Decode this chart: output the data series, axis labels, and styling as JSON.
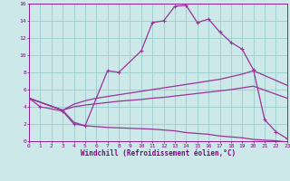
{
  "bg_color": "#cce8e8",
  "grid_color": "#99cccc",
  "line_color": "#993399",
  "xlabel": "Windchill (Refroidissement éolien,°C)",
  "xlim": [
    0,
    23
  ],
  "ylim": [
    0,
    16
  ],
  "xticks": [
    0,
    1,
    2,
    3,
    4,
    5,
    6,
    7,
    8,
    9,
    10,
    11,
    12,
    13,
    14,
    15,
    16,
    17,
    18,
    19,
    20,
    21,
    22,
    23
  ],
  "yticks": [
    0,
    2,
    4,
    6,
    8,
    10,
    12,
    14,
    16
  ],
  "line1_x": [
    0,
    1,
    3,
    4,
    5,
    7,
    8,
    10,
    11,
    12,
    13,
    14,
    15,
    16,
    17,
    18,
    19,
    20,
    21,
    22,
    23
  ],
  "line1_y": [
    5,
    4,
    3.5,
    2,
    1.8,
    8.2,
    8.0,
    10.5,
    13.8,
    14.0,
    15.7,
    15.8,
    13.8,
    14.2,
    12.7,
    11.5,
    10.7,
    8.3,
    2.5,
    1.1,
    0.3
  ],
  "line2_x": [
    0,
    3,
    4,
    5,
    6,
    7,
    8,
    9,
    10,
    11,
    12,
    13,
    14,
    15,
    16,
    17,
    18,
    19,
    20,
    23
  ],
  "line2_y": [
    5,
    3.6,
    4.3,
    4.7,
    5.0,
    5.2,
    5.4,
    5.6,
    5.8,
    6.0,
    6.2,
    6.4,
    6.6,
    6.8,
    7.0,
    7.2,
    7.5,
    7.8,
    8.2,
    6.5
  ],
  "line3_x": [
    0,
    3,
    4,
    5,
    6,
    7,
    8,
    9,
    10,
    11,
    12,
    13,
    14,
    15,
    16,
    17,
    18,
    19,
    20,
    23
  ],
  "line3_y": [
    5,
    3.6,
    4.0,
    4.2,
    4.35,
    4.5,
    4.65,
    4.75,
    4.85,
    5.0,
    5.1,
    5.25,
    5.4,
    5.55,
    5.7,
    5.85,
    6.0,
    6.2,
    6.4,
    5.0
  ],
  "line4_x": [
    0,
    3,
    4,
    5,
    6,
    7,
    8,
    9,
    10,
    11,
    12,
    13,
    14,
    15,
    16,
    17,
    18,
    19,
    20,
    22,
    23
  ],
  "line4_y": [
    5,
    3.6,
    2.2,
    1.8,
    1.7,
    1.6,
    1.55,
    1.5,
    1.45,
    1.4,
    1.3,
    1.2,
    1.0,
    0.9,
    0.8,
    0.6,
    0.5,
    0.4,
    0.2,
    0.05,
    -0.1
  ]
}
